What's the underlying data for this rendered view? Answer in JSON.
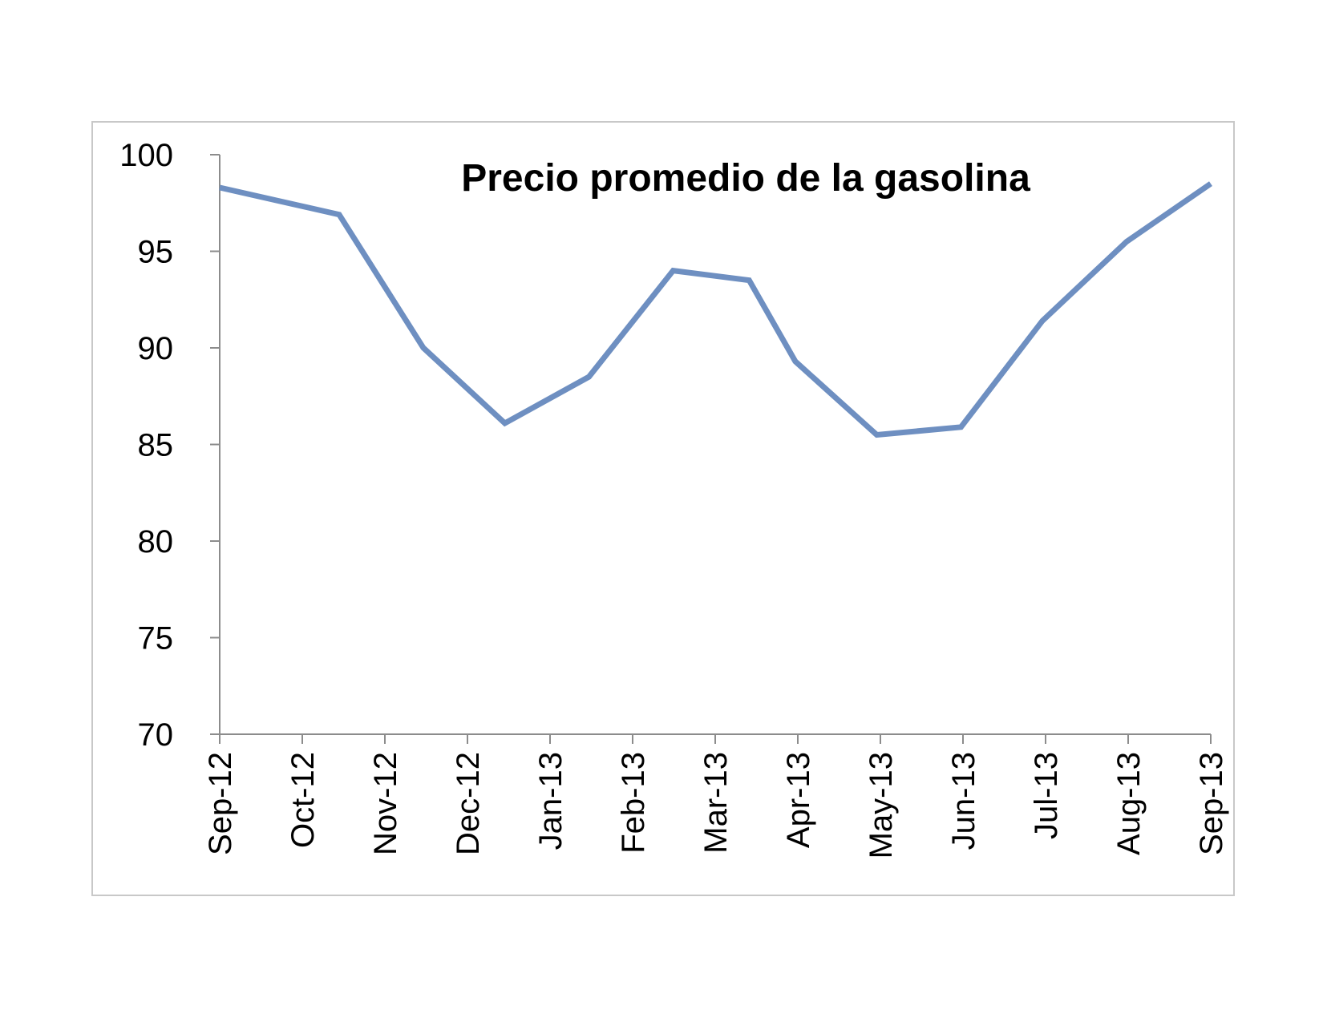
{
  "chart_data": {
    "type": "line",
    "title": "Precio promedio de la gasolina",
    "xlabel": "",
    "ylabel": "",
    "categories": [
      "Sep-12",
      "Oct-12",
      "Nov-12",
      "Dec-12",
      "Jan-13",
      "Feb-13",
      "Mar-13",
      "Apr-13",
      "May-13",
      "Jun-13",
      "Jul-13",
      "Aug-13",
      "Sep-13"
    ],
    "series": [
      {
        "name": "",
        "points": [
          {
            "x": "2012-09-01",
            "y": 98.3
          },
          {
            "x": "2012-10-15",
            "y": 96.9
          },
          {
            "x": "2012-11-15",
            "y": 90.0
          },
          {
            "x": "2012-12-15",
            "y": 86.1
          },
          {
            "x": "2013-01-15",
            "y": 88.5
          },
          {
            "x": "2013-02-15",
            "y": 94.0
          },
          {
            "x": "2013-03-15",
            "y": 93.5
          },
          {
            "x": "2013-04-01",
            "y": 89.3
          },
          {
            "x": "2013-05-01",
            "y": 85.5
          },
          {
            "x": "2013-06-01",
            "y": 85.9
          },
          {
            "x": "2013-07-01",
            "y": 91.4
          },
          {
            "x": "2013-08-01",
            "y": 95.5
          },
          {
            "x": "2013-09-01",
            "y": 98.5
          }
        ],
        "color": "#6e8fc1"
      }
    ],
    "yticks": [
      70,
      75,
      80,
      85,
      90,
      95,
      100
    ],
    "ylim": [
      70,
      100
    ],
    "xlim": [
      "2012-09-01",
      "2013-09-01"
    ],
    "grid": false,
    "legend": "none"
  }
}
